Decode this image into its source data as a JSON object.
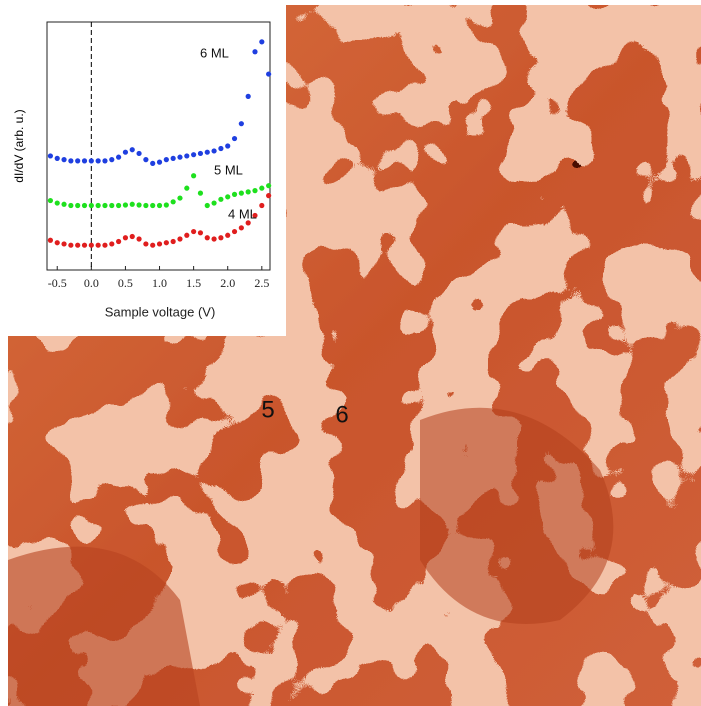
{
  "chart_data": {
    "type": "scatter",
    "xlabel": "Sample voltage (V)",
    "ylabel": "dI/dV (arb. u.)",
    "x": [
      -0.6,
      -0.5,
      -0.4,
      -0.3,
      -0.2,
      -0.1,
      0,
      0.1,
      0.2,
      0.3,
      0.4,
      0.5,
      0.6,
      0.7,
      0.8,
      0.9,
      1.0,
      1.1,
      1.2,
      1.3,
      1.4,
      1.5,
      1.6,
      1.7,
      1.8,
      1.9,
      2.0,
      2.1,
      2.2,
      2.3,
      2.4,
      2.5,
      2.6
    ],
    "series": [
      {
        "name": "6 ML",
        "color": "#1f3fe0",
        "values": [
          4.6,
          4.5,
          4.45,
          4.4,
          4.4,
          4.4,
          4.4,
          4.4,
          4.4,
          4.45,
          4.55,
          4.75,
          4.85,
          4.7,
          4.45,
          4.3,
          4.35,
          4.45,
          4.5,
          4.55,
          4.6,
          4.65,
          4.7,
          4.75,
          4.8,
          4.9,
          5.0,
          5.3,
          5.9,
          7.0,
          8.8,
          9.2,
          7.9
        ]
      },
      {
        "name": "5 ML",
        "color": "#1ee01e",
        "values": [
          2.8,
          2.7,
          2.65,
          2.6,
          2.6,
          2.6,
          2.6,
          2.6,
          2.6,
          2.6,
          2.6,
          2.62,
          2.65,
          2.62,
          2.6,
          2.6,
          2.6,
          2.62,
          2.75,
          2.9,
          3.3,
          3.8,
          3.1,
          2.6,
          2.7,
          2.85,
          2.95,
          3.05,
          3.1,
          3.15,
          3.2,
          3.3,
          3.4
        ]
      },
      {
        "name": "4 ML",
        "color": "#e01e1e",
        "values": [
          1.2,
          1.1,
          1.05,
          1.0,
          1.0,
          1.0,
          1.0,
          1.0,
          1.0,
          1.05,
          1.15,
          1.3,
          1.35,
          1.25,
          1.05,
          1.0,
          1.05,
          1.1,
          1.15,
          1.25,
          1.4,
          1.55,
          1.5,
          1.3,
          1.25,
          1.3,
          1.4,
          1.55,
          1.7,
          1.9,
          2.2,
          2.6,
          3.0
        ]
      }
    ],
    "xlim": [
      -0.65,
      2.62
    ],
    "ylim": [
      0,
      10
    ],
    "xticks": [
      -0.5,
      {
        "value": 0,
        "label": "0.0"
      },
      0.5,
      {
        "value": 1,
        "label": "1.0"
      },
      1.5,
      {
        "value": 2,
        "label": "2.0"
      },
      2.5
    ],
    "vline": 0,
    "grid": false
  },
  "annotations": [
    "5",
    "6"
  ]
}
